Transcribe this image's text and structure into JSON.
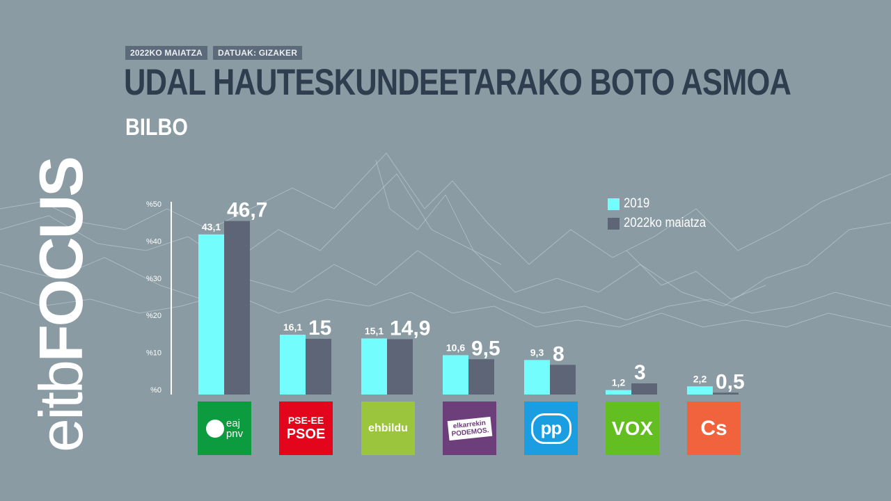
{
  "header": {
    "date_tag": "2022KO MAIATZA",
    "source_tag": "DATUAK: GIZAKER",
    "title": "UDAL HAUTESKUNDEETARAKO BOTO ASMOA",
    "subtitle": "BILBO"
  },
  "brand": {
    "prefix": "eitb",
    "suffix": "FOCUS"
  },
  "colors": {
    "background": "#8a9ba3",
    "series_2019": "#74fdfd",
    "series_2022": "#5d6576",
    "title": "#2f3d4f"
  },
  "chart_data": {
    "type": "bar",
    "categories": [
      "EAJ-PNV",
      "PSE-EE PSOE",
      "EH Bildu",
      "Elkarrekin Podemos",
      "PP",
      "VOX",
      "Cs"
    ],
    "series": [
      {
        "name": "2019",
        "values": [
          43.1,
          16.1,
          15.1,
          10.6,
          9.3,
          1.2,
          2.2
        ],
        "labels": [
          "43,1",
          "16,1",
          "15,1",
          "10,6",
          "9,3",
          "1,2",
          "2,2"
        ]
      },
      {
        "name": "2022ko maiatza",
        "values": [
          46.7,
          15,
          14.9,
          9.5,
          8,
          3,
          0.5
        ],
        "labels": [
          "46,7",
          "15",
          "14,9",
          "9,5",
          "8",
          "3",
          "0,5"
        ]
      }
    ],
    "yticks": [
      "%0",
      "%10",
      "%20",
      "%30",
      "%40",
      "%50"
    ],
    "ylim": [
      0,
      50
    ],
    "legend_position": "top-right",
    "title": "UDAL HAUTESKUNDEETARAKO BOTO ASMOA",
    "subtitle": "BILBO"
  },
  "logos": [
    {
      "line1": "eaj",
      "line2": "pnv",
      "color": "#0c9b3e"
    },
    {
      "line1": "PSE-EE",
      "line2": "PSOE",
      "color": "#e3051b"
    },
    {
      "line1": "ehbildu",
      "line2": "",
      "color": "#9bc53d"
    },
    {
      "line1": "elkarrekin",
      "line2": "PODEMOS.",
      "color": "#6c3e7a"
    },
    {
      "line1": "pp",
      "line2": "",
      "color": "#1b9de1"
    },
    {
      "line1": "VOX",
      "line2": "",
      "color": "#63be21"
    },
    {
      "line1": "Cs",
      "line2": "",
      "color": "#f0633c"
    }
  ]
}
